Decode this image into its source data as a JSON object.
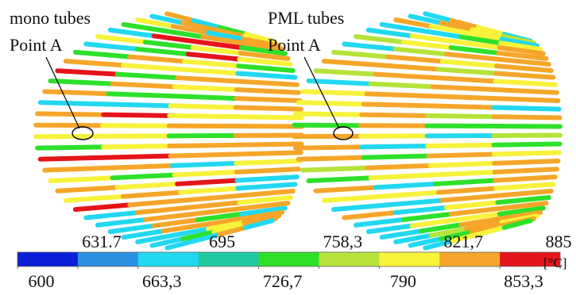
{
  "panels": [
    {
      "title": "mono tubes",
      "label": "Point A"
    },
    {
      "title": "PML tubes",
      "label": "Point A"
    }
  ],
  "colorbar": {
    "unit": "[°C]",
    "colors": [
      "#0a1fd6",
      "#2a8fe0",
      "#22d8f0",
      "#22c9a0",
      "#2ee02a",
      "#b5e33a",
      "#f7f23a",
      "#f5a62a",
      "#e5141a"
    ],
    "ticks": [
      600,
      {
        "value": 631.7,
        "label": "631.7"
      },
      {
        "value": 663.3,
        "label": "663,3"
      },
      695,
      {
        "value": 726.7,
        "label": "726,7"
      },
      {
        "value": 758.3,
        "label": "758,3"
      },
      790,
      {
        "value": 821.7,
        "label": "821,7"
      },
      {
        "value": 853.3,
        "label": "853,3"
      },
      885
    ]
  }
}
